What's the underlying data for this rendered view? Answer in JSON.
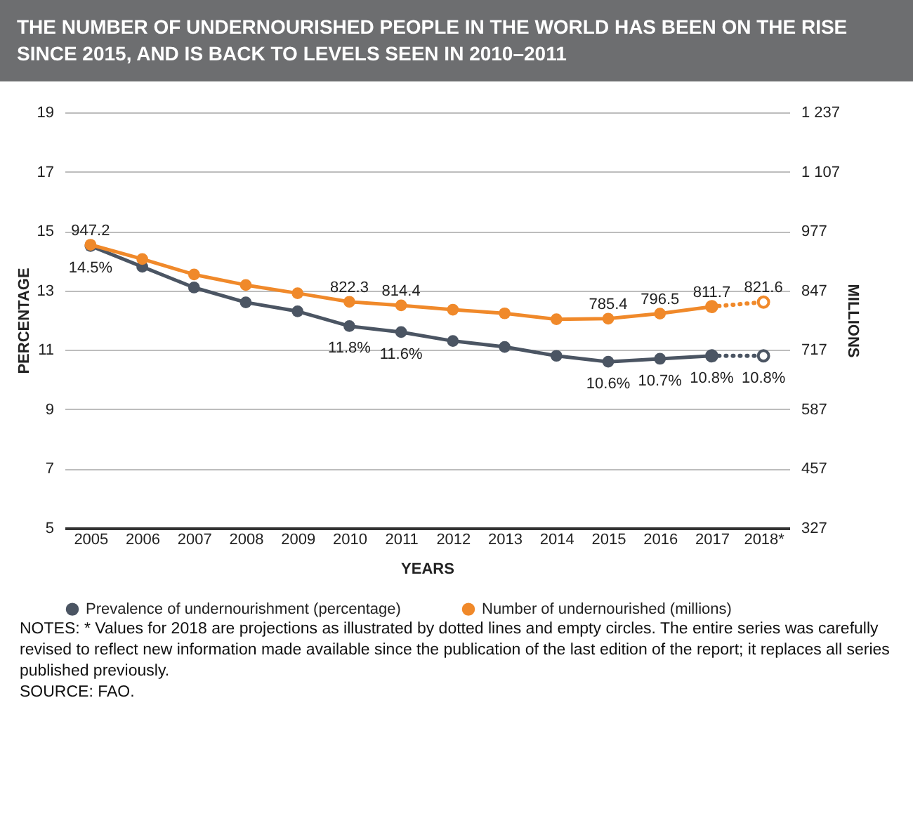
{
  "chart_data": {
    "type": "line",
    "title": "THE NUMBER OF UNDERNOURISHED PEOPLE IN THE WORLD HAS BEEN ON THE RISE SINCE 2015, AND IS BACK TO LEVELS SEEN IN 2010–2011",
    "xlabel": "YEARS",
    "ylabel": "PERCENTAGE",
    "y2label": "MILLIONS",
    "categories": [
      "2005",
      "2006",
      "2007",
      "2008",
      "2009",
      "2010",
      "2011",
      "2012",
      "2013",
      "2014",
      "2015",
      "2016",
      "2017",
      "2018*"
    ],
    "series": [
      {
        "name": "Prevalence of undernourishment (percentage)",
        "color": "#4b5563",
        "line_style": "solid",
        "values": [
          14.5,
          13.8,
          13.1,
          12.6,
          12.3,
          11.8,
          11.6,
          11.3,
          11.1,
          10.8,
          10.6,
          10.7,
          10.8,
          null
        ],
        "value_labels": [
          "14.5%",
          null,
          null,
          null,
          null,
          "11.8%",
          "11.6%",
          null,
          null,
          null,
          "10.6%",
          "10.7%",
          "10.8%",
          null
        ]
      },
      {
        "name": "Number of undernourished (millions)",
        "color": "#f0892a",
        "axis": "y2",
        "line_style": "solid",
        "values": [
          947.2,
          916,
          882,
          859,
          841,
          822.3,
          814.4,
          805,
          797,
          784,
          785.4,
          796.5,
          811.7,
          null
        ],
        "value_labels": [
          "947.2",
          null,
          null,
          null,
          null,
          "822.3",
          "814.4",
          null,
          null,
          null,
          "785.4",
          "796.5",
          "811.7",
          null
        ]
      },
      {
        "color": "#4b5563",
        "line_style": "dotted",
        "values": [
          null,
          null,
          null,
          null,
          null,
          null,
          null,
          null,
          null,
          null,
          null,
          null,
          10.8,
          10.8
        ],
        "value_labels": [
          null,
          null,
          null,
          null,
          null,
          null,
          null,
          null,
          null,
          null,
          null,
          null,
          null,
          "10.8%"
        ]
      },
      {
        "color": "#f0892a",
        "axis": "y2",
        "line_style": "dotted",
        "values": [
          null,
          null,
          null,
          null,
          null,
          null,
          null,
          null,
          null,
          null,
          null,
          null,
          811.7,
          821.6
        ],
        "value_labels": [
          null,
          null,
          null,
          null,
          null,
          null,
          null,
          null,
          null,
          null,
          null,
          null,
          null,
          "821.6"
        ]
      }
    ],
    "ylim": [
      5,
      19
    ],
    "yticks": [
      5,
      7,
      9,
      11,
      13,
      15,
      17,
      19
    ],
    "y2lim": [
      327,
      1237
    ],
    "y2ticks": [
      327,
      457,
      587,
      717,
      847,
      977,
      {
        "value": 1107,
        "label": "1 107"
      },
      {
        "value": 1237,
        "label": "1 237"
      }
    ],
    "grid": "y",
    "legend": "bottom",
    "marker": "circle",
    "annotations": [
      "NOTES: * Values for 2018 are projections as illustrated by dotted lines and empty circles. The entire series was carefully revised to reflect new information made available since the publication of the last edition of the report; it replaces all series published previously.",
      "SOURCE: FAO."
    ]
  }
}
